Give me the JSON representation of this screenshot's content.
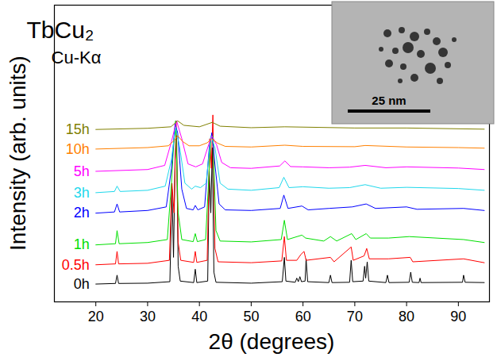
{
  "chart_data": {
    "type": "line",
    "title": "TbCu₂",
    "subtitle": "Cu-Kα",
    "x_label": "2θ (degrees)",
    "y_label": "Intensity (arb. units)",
    "xlim": [
      12,
      96
    ],
    "xticks": [
      20,
      30,
      40,
      50,
      60,
      70,
      80,
      90
    ],
    "ylim": [
      0,
      100
    ],
    "tick_labels": "x",
    "annotations": [
      {
        "text": "25 nm"
      }
    ],
    "series": [
      {
        "name": "0h",
        "color": "#000000",
        "x": [
          20,
          23.8,
          24.1,
          24.4,
          30,
          34.3,
          34.7,
          35.0,
          35.3,
          35.6,
          35.9,
          36.3,
          38.9,
          39.2,
          39.5,
          41.6,
          41.9,
          42.2,
          42.5,
          42.8,
          43.2,
          50,
          56.0,
          56.4,
          56.7,
          58.5,
          58.8,
          59.1,
          59.4,
          59.7,
          60.4,
          60.6,
          60.9,
          65.0,
          65.3,
          65.6,
          69.0,
          69.3,
          69.6,
          71.6,
          71.9,
          72.1,
          72.4,
          72.7,
          76.0,
          76.3,
          76.6,
          80.5,
          80.8,
          81.1,
          82.4,
          82.6,
          82.8,
          90.8,
          91.0,
          91.3,
          95
        ],
        "values": [
          6,
          6.2,
          9,
          6.2,
          6.3,
          6.8,
          38,
          15,
          48,
          56,
          12,
          7,
          6.5,
          11,
          6.5,
          7,
          44,
          30,
          52,
          10,
          6.6,
          6.3,
          6.8,
          15,
          7,
          6.6,
          8,
          6.8,
          8.5,
          6.8,
          7,
          14.5,
          6.8,
          6.5,
          9,
          6.5,
          6.6,
          14,
          6.8,
          7,
          12,
          8,
          13.5,
          7,
          6.5,
          9,
          6.5,
          6.6,
          10,
          6.6,
          6.5,
          8,
          6.5,
          6.6,
          9,
          6.6,
          6.5
        ]
      },
      {
        "name": "0.5h",
        "color": "#ff0000",
        "x": [
          20,
          23.8,
          24.1,
          24.4,
          30,
          34.2,
          34.7,
          35.1,
          35.5,
          35.9,
          36.4,
          38.9,
          39.2,
          39.5,
          41.5,
          42.0,
          42.3,
          42.6,
          43.0,
          43.6,
          50,
          55.9,
          56.4,
          56.8,
          58.8,
          59.6,
          60.2,
          60.6,
          65.3,
          66,
          69.3,
          69.7,
          71.8,
          72.3,
          72.8,
          76.5,
          80.7,
          81.2,
          91,
          95
        ],
        "values": [
          12.5,
          12.8,
          17,
          12.8,
          13,
          14,
          40,
          30,
          61,
          20,
          14,
          13.3,
          17,
          13.3,
          14,
          55,
          45,
          63,
          18,
          13.5,
          13.2,
          13.8,
          22,
          14,
          14,
          16,
          17,
          14,
          15,
          13.5,
          18.5,
          14,
          15.5,
          18,
          14.5,
          14.5,
          15,
          13.5,
          14.5,
          13.2
        ]
      },
      {
        "name": "1h",
        "color": "#00e000",
        "x": [
          20,
          23.8,
          24.1,
          24.5,
          30,
          33.8,
          34.6,
          35.0,
          35.4,
          35.9,
          36.6,
          38.8,
          39.2,
          39.6,
          41.2,
          41.9,
          42.2,
          42.6,
          43.2,
          44,
          50,
          55.8,
          56.4,
          57,
          59.8,
          60.5,
          64,
          65.3,
          66.5,
          69.4,
          70.2,
          72.2,
          73,
          76.5,
          80.5,
          91,
          95
        ],
        "values": [
          19.2,
          19.6,
          24,
          19.6,
          20,
          21,
          40,
          52,
          61,
          30,
          21,
          20.3,
          23,
          20.3,
          21,
          45,
          55,
          56,
          24,
          20.5,
          20.2,
          21,
          27.5,
          21,
          22.5,
          21.5,
          20.5,
          22,
          20.5,
          23,
          21,
          23,
          21.5,
          21.5,
          22,
          21,
          20
        ]
      },
      {
        "name": "2h",
        "color": "#0000ff",
        "x": [
          20,
          23.6,
          24.1,
          24.6,
          30,
          33.6,
          34.6,
          35.3,
          35.8,
          36.6,
          37.5,
          38.8,
          39.2,
          39.7,
          41,
          41.9,
          42.4,
          42.9,
          43.8,
          45,
          50,
          55.6,
          56.3,
          57.1,
          59.8,
          61,
          65,
          69.5,
          72.2,
          74,
          80,
          82,
          91,
          95
        ],
        "values": [
          29.9,
          30.3,
          33,
          30.3,
          30.8,
          32,
          45,
          60,
          57,
          38,
          31.5,
          31,
          32.5,
          31,
          32,
          52,
          57,
          48,
          33,
          31,
          30.8,
          31.5,
          36,
          31.5,
          32.3,
          31,
          31.5,
          32,
          33,
          31.5,
          32,
          31.2,
          31.5,
          30.8
        ]
      },
      {
        "name": "3h",
        "color": "#1ed8ec",
        "x": [
          20,
          23.6,
          24.1,
          24.7,
          30,
          33.4,
          34.6,
          35.4,
          36.2,
          37.2,
          38.5,
          39.2,
          40.2,
          41.3,
          42.2,
          43.0,
          44,
          45.5,
          50,
          55.4,
          56.3,
          57.3,
          60,
          65,
          69,
          72,
          75,
          80,
          90,
          95
        ],
        "values": [
          36.8,
          37.2,
          39,
          37.2,
          37.6,
          39,
          48,
          59,
          52,
          40,
          38,
          39,
          38.5,
          40,
          56,
          52,
          40,
          38,
          37.6,
          38.5,
          42,
          38.5,
          38.8,
          38.3,
          38.5,
          39.5,
          38.3,
          38.6,
          38.2,
          37.6
        ]
      },
      {
        "name": "5h",
        "color": "#ff00ff",
        "x": [
          20,
          30,
          33.3,
          34.6,
          35.6,
          36.6,
          37.8,
          39.3,
          40.6,
          41.6,
          42.4,
          43.3,
          44.3,
          46,
          50,
          55.5,
          56.5,
          57.6,
          60,
          65,
          69,
          72,
          76,
          80,
          90,
          95
        ],
        "values": [
          44,
          44.6,
          46,
          54,
          61,
          55,
          46.5,
          45.5,
          46.5,
          52,
          56,
          53,
          47,
          45.2,
          45,
          45.8,
          47.5,
          45.6,
          45.5,
          45.2,
          45.4,
          46,
          45.2,
          45.5,
          45.1,
          44.6
        ]
      },
      {
        "name": "10h",
        "color": "#ff8000",
        "x": [
          20,
          30,
          34,
          35.2,
          35.8,
          36.8,
          38,
          40,
          41.5,
          42.4,
          43.5,
          45,
          50,
          56.5,
          60,
          70,
          72,
          80,
          90,
          95
        ],
        "values": [
          51.5,
          52,
          52.6,
          54.5,
          56,
          54,
          52.6,
          52.6,
          53.6,
          55,
          53.5,
          52.4,
          52.2,
          52.8,
          52.4,
          52.3,
          52.7,
          52.2,
          52,
          51.8
        ]
      },
      {
        "name": "15h",
        "color": "#808000",
        "x": [
          20,
          30,
          34.5,
          35.8,
          37,
          40,
          42.5,
          44,
          50,
          56.5,
          70,
          80,
          95
        ],
        "values": [
          58.1,
          58.5,
          59,
          61,
          59.5,
          59,
          60.5,
          59.2,
          58.7,
          59,
          58.6,
          58.6,
          58.2
        ]
      }
    ]
  }
}
